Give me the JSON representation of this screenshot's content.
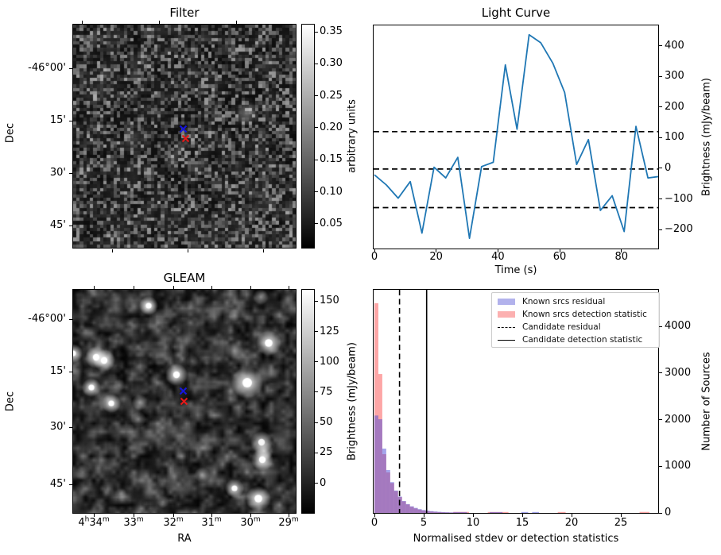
{
  "figure": {
    "background": "#ffffff"
  },
  "chart_data": [
    {
      "type": "heatmap",
      "id": "filter",
      "title": "Filter",
      "ylabel": "Dec",
      "dec_ticks": [
        "-46°00'",
        "15'",
        "30'",
        "45'"
      ],
      "colorbar": {
        "label": "arbitrary units",
        "ticks": [
          "0.35",
          "0.30",
          "0.25",
          "0.20",
          "0.15",
          "0.10",
          "0.05"
        ],
        "vmin": 0.012,
        "vmax": 0.361,
        "cmap": "gray"
      },
      "markers": [
        {
          "name": "candidate-marker-blue",
          "color": "#1515dd",
          "x": 138,
          "y": 131
        },
        {
          "name": "candidate-marker-red",
          "color": "#e61919",
          "x": 141,
          "y": 143.5
        }
      ],
      "smudges": [
        [
          218,
          112,
          8,
          0.32
        ],
        [
          126,
          170,
          5,
          0.2
        ],
        [
          132,
          160,
          5,
          0.2
        ],
        [
          138,
          151,
          5,
          0.18
        ],
        [
          70,
          147,
          4,
          0.15
        ],
        [
          78,
          140,
          4,
          0.15
        ],
        [
          150,
          60,
          6,
          0.12
        ],
        [
          40,
          60,
          5,
          0.1
        ],
        [
          230,
          230,
          5,
          0.1
        ]
      ]
    },
    {
      "type": "line",
      "id": "light_curve",
      "title": "Light Curve",
      "xlabel": "Time (s)",
      "ylabel": "Brightness (mJy/beam)",
      "line_color": "#1f77b4",
      "x_ticks": [
        0,
        20,
        40,
        60,
        80
      ],
      "y_ticks": [
        400,
        300,
        200,
        100,
        0,
        -100,
        -200
      ],
      "ylim": [
        -264,
        468
      ],
      "xlim": [
        0,
        92.4
      ],
      "x": [
        0,
        3.9,
        7.7,
        11.6,
        15.4,
        19.3,
        23.1,
        27,
        30.8,
        34.7,
        38.5,
        42.4,
        46.2,
        50.1,
        53.9,
        57.8,
        61.6,
        65.5,
        69.3,
        73.2,
        77,
        80.9,
        84.7,
        88.6,
        92.4
      ],
      "y": [
        -19,
        -52,
        -95,
        -41,
        -209,
        6,
        -29,
        38,
        -226,
        8,
        22,
        340,
        130,
        438,
        412,
        345,
        250,
        15,
        96,
        -135,
        -87,
        -204,
        139,
        -29,
        -24
      ],
      "hlines": [
        122,
        0,
        -126
      ]
    },
    {
      "type": "heatmap",
      "id": "gleam",
      "title": "GLEAM",
      "xlabel": "RA",
      "ylabel": "Dec",
      "ra_ticks": [
        "4h34m",
        "33m",
        "32m",
        "31m",
        "30m",
        "29m"
      ],
      "dec_ticks": [
        "-46°00'",
        "15'",
        "30'",
        "45'"
      ],
      "colorbar": {
        "label": "Brightness (mJy/beam)",
        "ticks": [
          "150",
          "125",
          "100",
          "75",
          "50",
          "25",
          "0"
        ],
        "vmin": -25,
        "vmax": 159,
        "cmap": "gray"
      },
      "markers": [
        {
          "name": "candidate-marker-blue",
          "color": "#1515dd",
          "x": 138,
          "y": 127
        },
        {
          "name": "candidate-marker-red",
          "color": "#e61919",
          "x": 139.5,
          "y": 140
        }
      ],
      "sources": [
        [
          95,
          20,
          6,
          1
        ],
        [
          0,
          80,
          6,
          0.95
        ],
        [
          29,
          85,
          7,
          1
        ],
        [
          39,
          89,
          7,
          1
        ],
        [
          23,
          123,
          6,
          1
        ],
        [
          48,
          143,
          6,
          0.95
        ],
        [
          84,
          142,
          5,
          0.55
        ],
        [
          82,
          163,
          5,
          0.45
        ],
        [
          130,
          107,
          7,
          1
        ],
        [
          219,
          117,
          10,
          1
        ],
        [
          246,
          67,
          8,
          1
        ],
        [
          236,
          9,
          5,
          0.5
        ],
        [
          203,
          77,
          6,
          0.4
        ],
        [
          203,
          32,
          4,
          0.35
        ],
        [
          237,
          192,
          7,
          0.85
        ],
        [
          240,
          203,
          6,
          0.7
        ],
        [
          238,
          214,
          7,
          1
        ],
        [
          203,
          250,
          6,
          0.95
        ],
        [
          233,
          263,
          8,
          1
        ],
        [
          162,
          233,
          5,
          0.5
        ],
        [
          12,
          230,
          5,
          0.4
        ],
        [
          60,
          257,
          4,
          0.3
        ],
        [
          113,
          267,
          4,
          0.35
        ],
        [
          58,
          120,
          4,
          0.3
        ],
        [
          150,
          90,
          4,
          0.3
        ]
      ]
    },
    {
      "type": "histogram",
      "id": "histogram",
      "xlabel": "Normalised stdev or detection statistics",
      "ylabel": "Number of Sources",
      "x_ticks": [
        0,
        5,
        10,
        15,
        20,
        25
      ],
      "y_ticks": [
        0,
        1000,
        2000,
        3000,
        4000
      ],
      "bin_width": 0.4,
      "bin_start": 0,
      "series": [
        {
          "name": "Known srcs residual",
          "color": "rgba(75,75,215,0.5)",
          "swatch": "#b2b2ec",
          "values": [
            2090,
            2010,
            1380,
            920,
            660,
            480,
            350,
            255,
            190,
            142,
            108,
            82,
            62,
            48,
            38,
            30,
            24,
            19,
            15,
            12
          ]
        },
        {
          "name": "Known srcs detection statistic",
          "color": "rgba(250,65,65,0.47)",
          "swatch": "#fcb0b0",
          "values": [
            4500,
            2980,
            1260,
            870,
            640,
            470,
            340,
            248,
            182,
            132,
            96,
            70,
            52,
            39,
            29,
            22,
            17,
            13,
            10,
            8
          ]
        }
      ],
      "tail": [
        {
          "x0": 8.0,
          "x1": 9.6,
          "h": 22,
          "series": 1
        },
        {
          "x0": 8.0,
          "x1": 9.4,
          "h": 16,
          "series": 0
        },
        {
          "x0": 11.5,
          "x1": 13.6,
          "h": 20,
          "series": 1
        },
        {
          "x0": 11.7,
          "x1": 13.0,
          "h": 18,
          "series": 0
        },
        {
          "x0": 14.9,
          "x1": 15.6,
          "h": 20,
          "series": 0
        },
        {
          "x0": 16.0,
          "x1": 16.7,
          "h": 20,
          "series": 0
        },
        {
          "x0": 18.6,
          "x1": 19.4,
          "h": 20,
          "series": 1
        },
        {
          "x0": 26.9,
          "x1": 27.9,
          "h": 22,
          "series": 1
        }
      ],
      "vlines": [
        {
          "label": "Candidate residual",
          "style": "dashed",
          "x": 2.55
        },
        {
          "label": "Candidate detection statistic",
          "style": "solid",
          "x": 5.3
        }
      ],
      "legend": [
        "Known srcs residual",
        "Known srcs detection statistic",
        "Candidate residual",
        "Candidate detection statistic"
      ]
    }
  ]
}
